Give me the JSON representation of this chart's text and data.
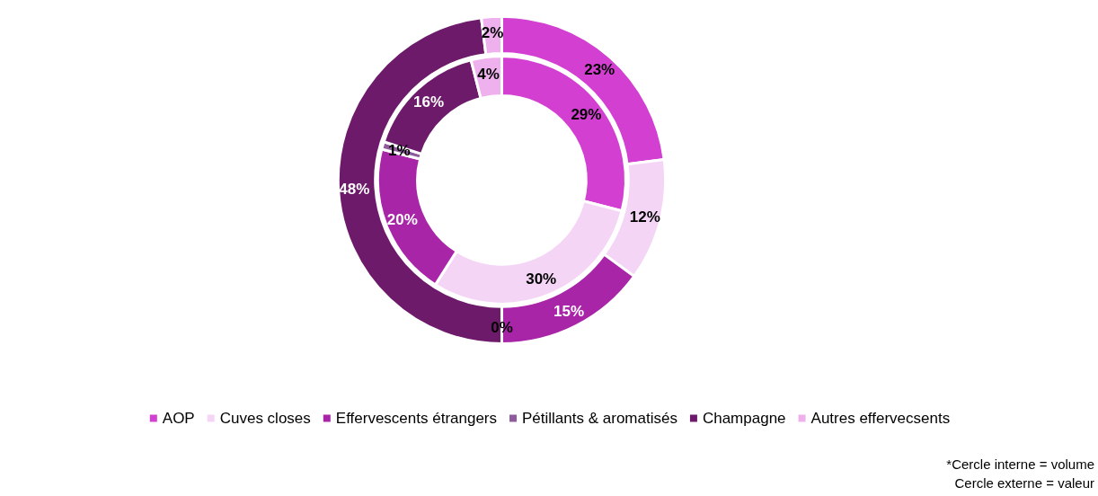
{
  "chart_data": {
    "type": "donut",
    "categories": [
      "AOP",
      "Cuves closes",
      "Effervescents étrangers",
      "Pétillants & aromatisés",
      "Champagne",
      "Autres effervecsents"
    ],
    "colors": [
      "#d23fd1",
      "#f5d5f5",
      "#a925a8",
      "#8e5c9c",
      "#6d1a6b",
      "#efb0ee"
    ],
    "series": [
      {
        "values": [
          29,
          30,
          20,
          1,
          16,
          4
        ],
        "value_labels": [
          "29%",
          "30%",
          "20%",
          "1%",
          "16%",
          "4%"
        ]
      },
      {
        "values": [
          23,
          12,
          15,
          0,
          48,
          2
        ],
        "value_labels": [
          "23%",
          "12%",
          "15%",
          "0%",
          "48%",
          "2%"
        ]
      }
    ],
    "legend": "bottom",
    "annotations": [
      "*Cercle interne = volume",
      "Cercle externe = valeur"
    ]
  }
}
